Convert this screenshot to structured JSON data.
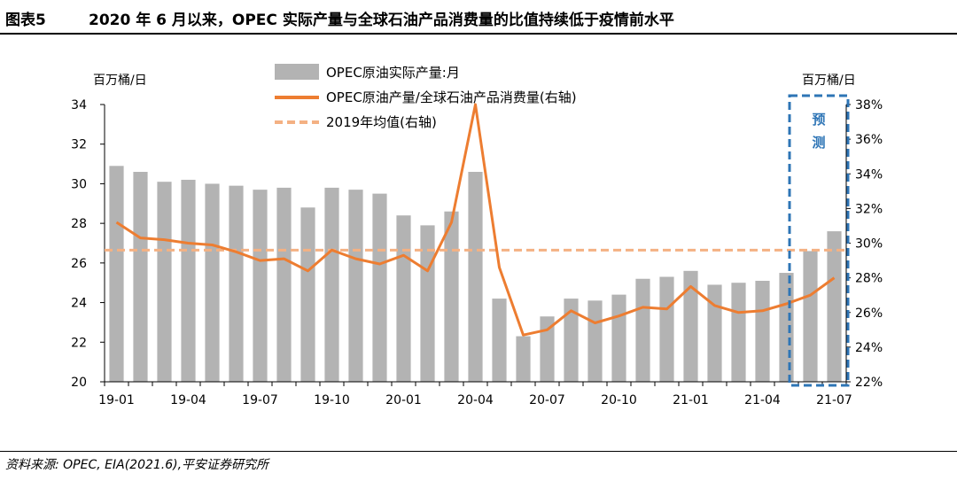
{
  "header": {
    "label": "图表5",
    "title": "2020 年 6 月以来，OPEC 实际产量与全球石油产品消费量的比值持续低于疫情前水平"
  },
  "footer": {
    "source": "资料来源: OPEC, EIA(2021.6),平安证券研究所"
  },
  "chart_data": {
    "type": "bar+line",
    "y_left_unit": "百万桶/日",
    "y_right_unit": "百万桶/日",
    "forecast_label": "预测",
    "x_tick_labels": [
      "19-01",
      "19-04",
      "19-07",
      "19-10",
      "20-01",
      "20-04",
      "20-07",
      "20-10",
      "21-01",
      "21-04",
      "21-07"
    ],
    "categories": [
      "19-01",
      "19-02",
      "19-03",
      "19-04",
      "19-05",
      "19-06",
      "19-07",
      "19-08",
      "19-09",
      "19-10",
      "19-11",
      "19-12",
      "20-01",
      "20-02",
      "20-03",
      "20-04",
      "20-05",
      "20-06",
      "20-07",
      "20-08",
      "20-09",
      "20-10",
      "20-11",
      "20-12",
      "21-01",
      "21-02",
      "21-03",
      "21-04",
      "21-05",
      "21-06",
      "21-07"
    ],
    "ylim_left": [
      20,
      34
    ],
    "yticks_left": [
      20,
      22,
      24,
      26,
      28,
      30,
      32,
      34
    ],
    "ylim_right": [
      0.22,
      0.38
    ],
    "yticks_right": [
      "22%",
      "24%",
      "26%",
      "28%",
      "30%",
      "32%",
      "34%",
      "36%",
      "38%"
    ],
    "series": [
      {
        "name": "OPEC原油实际产量:月",
        "type": "bar",
        "axis": "left",
        "color": "#b3b3b3",
        "values": [
          30.9,
          30.6,
          30.1,
          30.2,
          30.0,
          29.9,
          29.7,
          29.8,
          28.8,
          29.8,
          29.7,
          29.5,
          28.4,
          27.9,
          28.6,
          30.6,
          24.2,
          22.3,
          23.3,
          24.2,
          24.1,
          24.4,
          25.2,
          25.3,
          25.6,
          24.9,
          25.0,
          25.1,
          25.5,
          26.6,
          27.6
        ]
      },
      {
        "name": "OPEC原油产量/全球石油产品消费量(右轴)",
        "type": "line",
        "axis": "right",
        "color": "#ed7d31",
        "values": [
          0.312,
          0.303,
          0.302,
          0.3,
          0.299,
          0.295,
          0.29,
          0.291,
          0.284,
          0.296,
          0.291,
          0.288,
          0.293,
          0.284,
          0.312,
          0.38,
          0.286,
          0.247,
          0.25,
          0.261,
          0.254,
          0.258,
          0.263,
          0.262,
          0.275,
          0.264,
          0.26,
          0.261,
          0.265,
          0.27,
          0.28
        ]
      },
      {
        "name": "2019年均值(右轴)",
        "type": "line-dashed",
        "axis": "right",
        "color": "#f4b183",
        "value": 0.296
      }
    ],
    "forecast_range": [
      "21-06",
      "21-07"
    ],
    "grid": false,
    "legend_position": "top-center"
  }
}
